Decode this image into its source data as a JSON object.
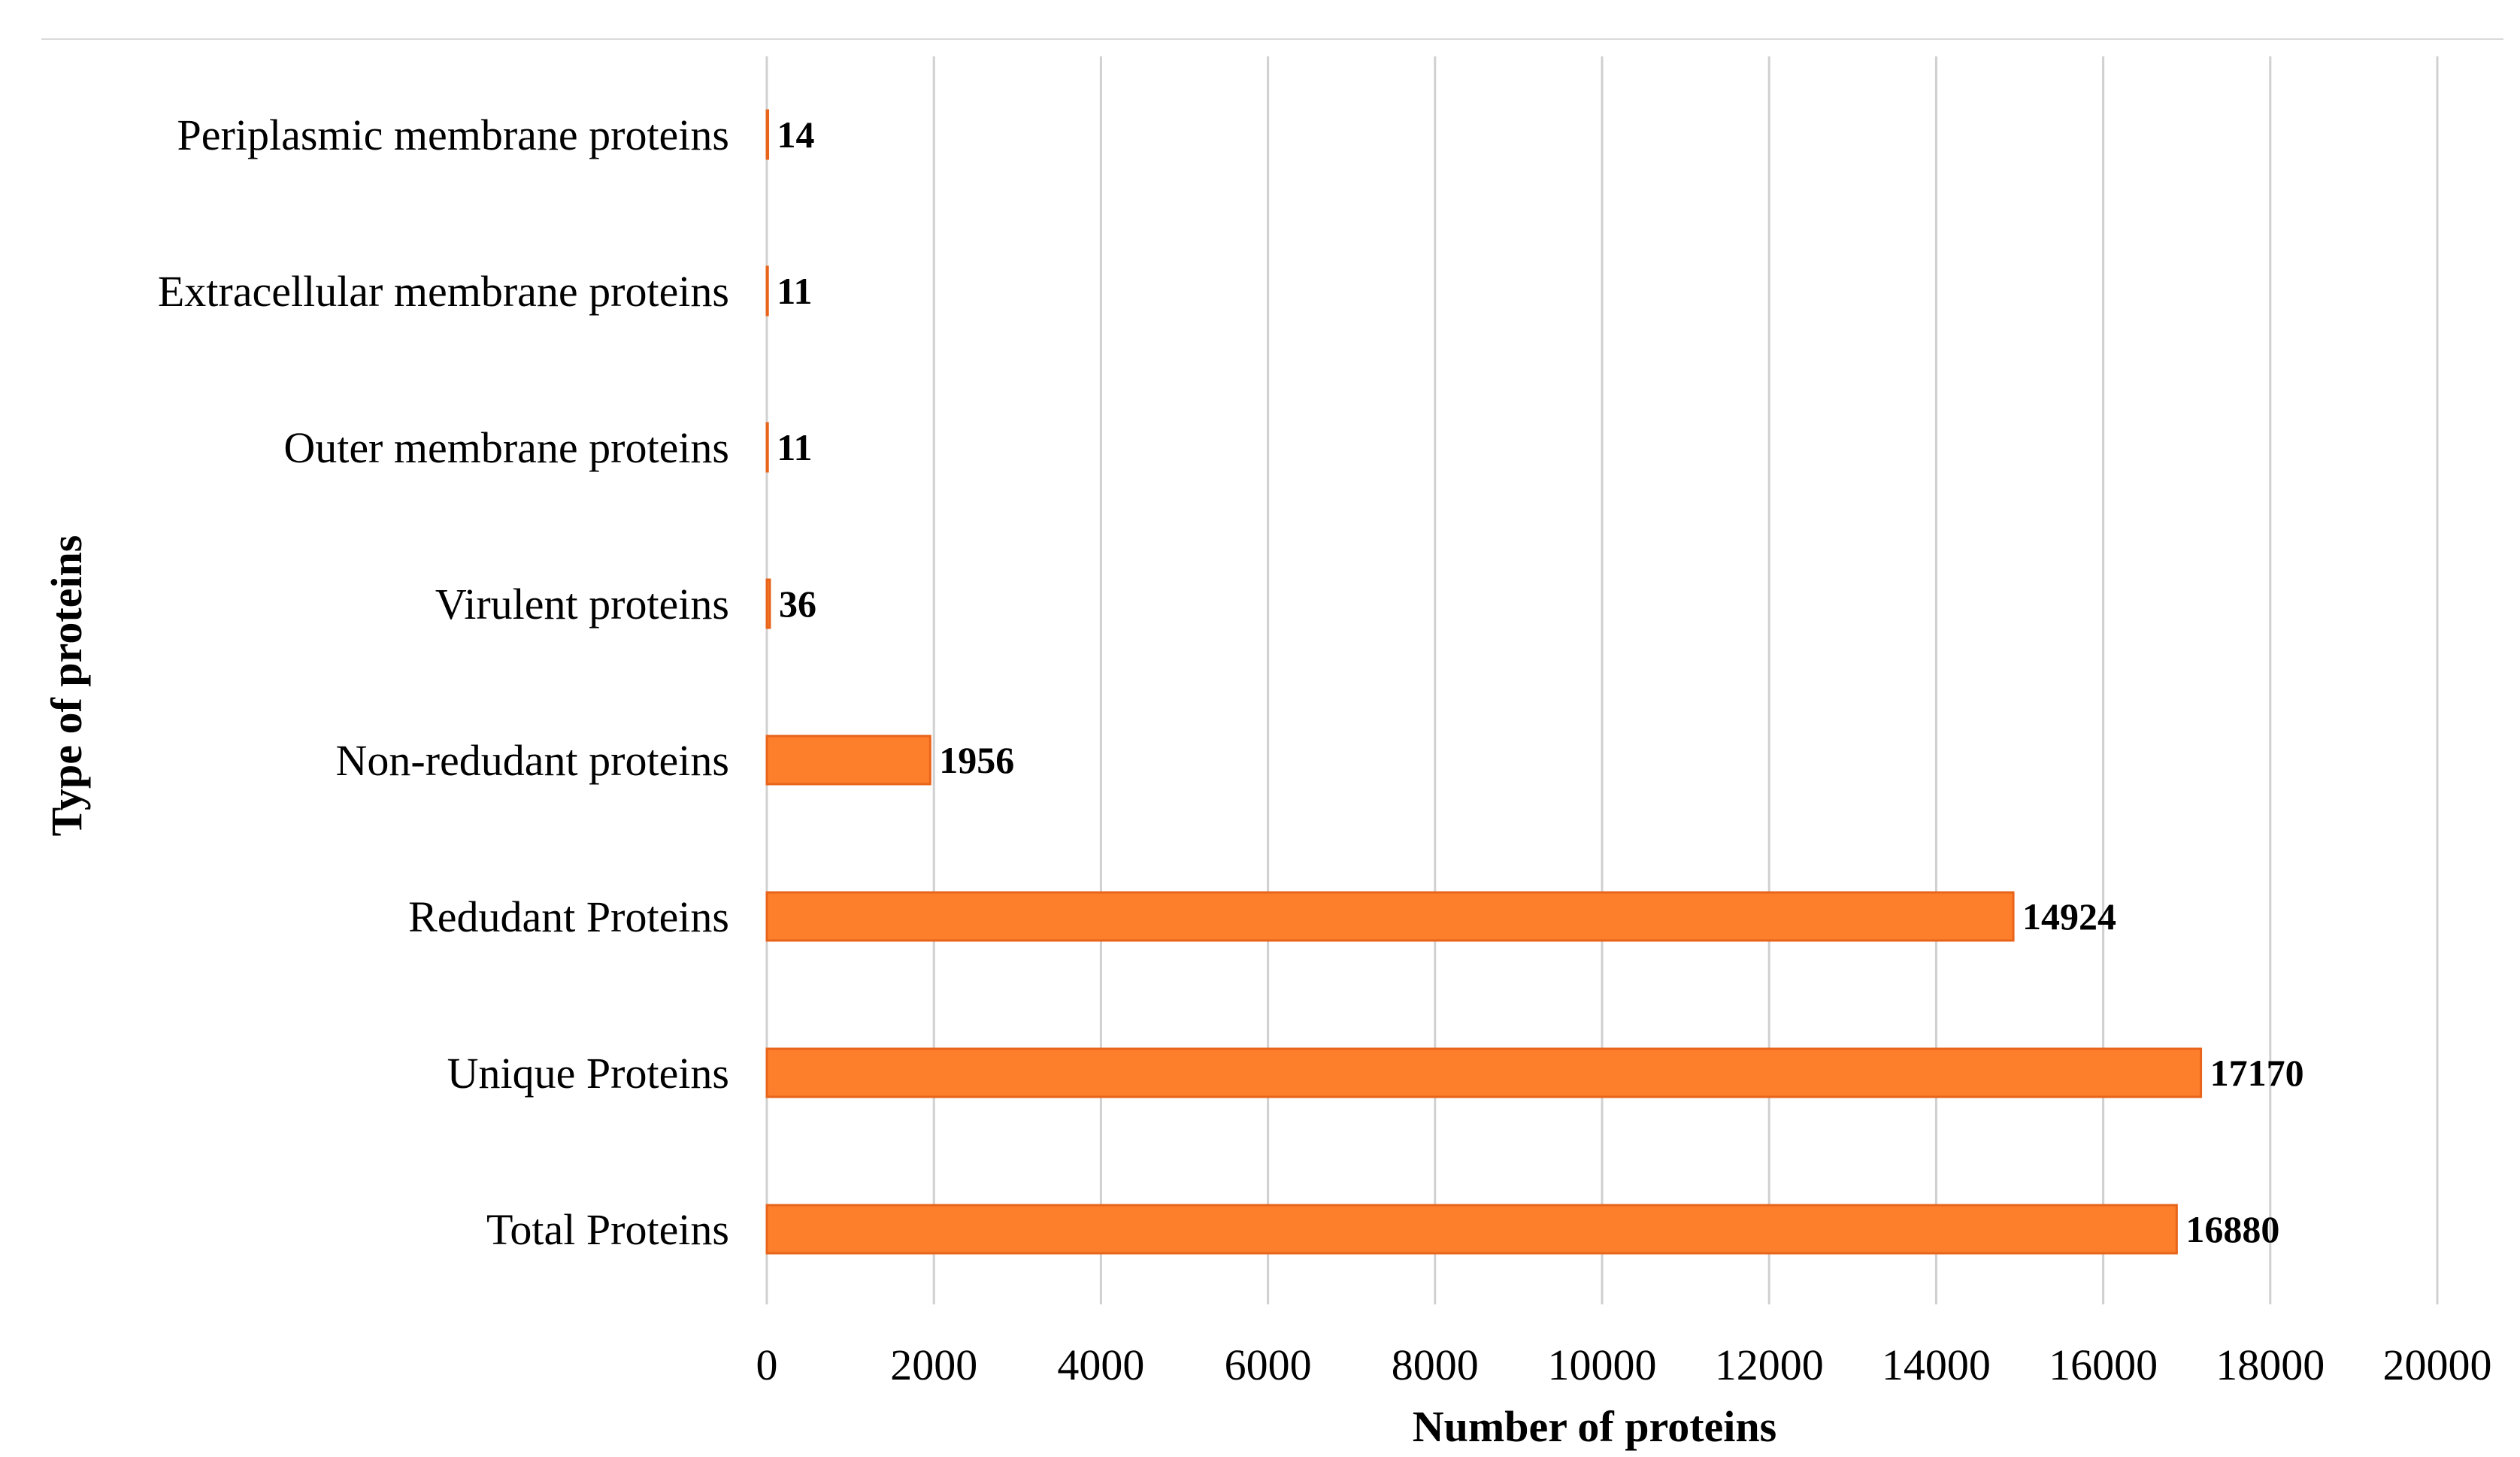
{
  "chart_data": {
    "type": "bar",
    "orientation": "horizontal",
    "title": "",
    "xlabel": "Number of proteins",
    "ylabel": "Type of proteins",
    "categories": [
      "Periplasmic membrane proteins",
      "Extracellular membrane proteins",
      "Outer membrane proteins",
      "Virulent proteins",
      "Non-redudant proteins",
      "Redudant Proteins",
      "Unique Proteins",
      "Total Proteins"
    ],
    "values": [
      14,
      11,
      11,
      36,
      1956,
      14924,
      17170,
      16880
    ],
    "data_labels": [
      "14",
      "11",
      "11",
      "36",
      "1956",
      "14924",
      "17170",
      "16880"
    ],
    "xlim": [
      0,
      20000
    ],
    "xticks": [
      0,
      2000,
      4000,
      6000,
      8000,
      10000,
      12000,
      14000,
      16000,
      18000,
      20000
    ],
    "xtick_labels": [
      "0",
      "2000",
      "4000",
      "6000",
      "8000",
      "10000",
      "12000",
      "14000",
      "16000",
      "18000",
      "20000"
    ],
    "grid": "vertical",
    "legend": "none",
    "bar_color": "#fd7f2c",
    "bar_edge_color": "#e8641a"
  }
}
